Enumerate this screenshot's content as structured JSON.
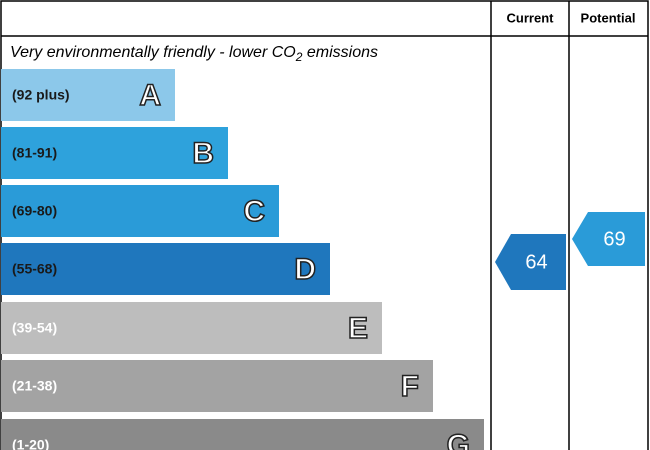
{
  "headers": {
    "current": "Current",
    "potential": "Potential"
  },
  "caption": {
    "before": "Very environmentally friendly - lower CO",
    "sub": "2",
    "after": " emissions"
  },
  "bands": [
    {
      "range": "(92 plus)",
      "letter": "A",
      "color": "#8cc8ea",
      "text_color": "#1a1a1a"
    },
    {
      "range": "(81-91)",
      "letter": "B",
      "color": "#2ea2dc",
      "text_color": "#1a1a1a"
    },
    {
      "range": "(69-80)",
      "letter": "C",
      "color": "#2a9bd8",
      "text_color": "#1a1a1a"
    },
    {
      "range": "(55-68)",
      "letter": "D",
      "color": "#1f77bd",
      "text_color": "#1a1a1a"
    },
    {
      "range": "(39-54)",
      "letter": "E",
      "color": "#bdbdbd",
      "text_color": "#ffffff"
    },
    {
      "range": "(21-38)",
      "letter": "F",
      "color": "#a3a3a3",
      "text_color": "#ffffff"
    },
    {
      "range": "(1-20)",
      "letter": "G",
      "color": "#8a8a8a",
      "text_color": "#ffffff"
    }
  ],
  "current": {
    "value": 64,
    "color": "#1f77bd"
  },
  "potential": {
    "value": 69,
    "color": "#2a9bd8"
  }
}
